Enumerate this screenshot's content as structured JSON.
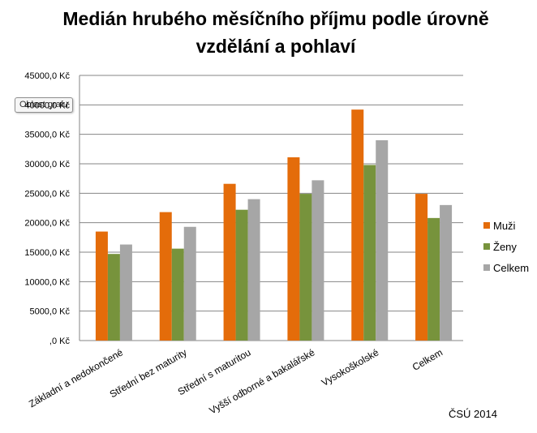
{
  "chart_data": {
    "type": "bar",
    "title": "Medián hrubého měsíčního příjmu podle úrovně vzdělání a pohlaví",
    "categories": [
      "Základní a nedokončené",
      "Střední bez maturity",
      "Střední s maturitou",
      "Vyšší odborné a bakalářské",
      "Vysokoškolské",
      "Celkem"
    ],
    "series": [
      {
        "name": "Muži",
        "color": "#e46c0a",
        "values": [
          18500,
          21800,
          26600,
          31100,
          39200,
          24900
        ]
      },
      {
        "name": "Ženy",
        "color": "#77933c",
        "values": [
          14700,
          15600,
          22200,
          24900,
          29800,
          20800
        ]
      },
      {
        "name": "Celkem",
        "color": "#a6a6a6",
        "values": [
          16300,
          19300,
          24000,
          27200,
          34000,
          23000
        ]
      }
    ],
    "yticks": [
      ",0 Kč",
      "5000,0 Kč",
      "10000,0 Kč",
      "15000,0 Kč",
      "20000,0 Kč",
      "25000,0 Kč",
      "30000,0 Kč",
      "35000,0 Kč",
      "40000,0 Kč",
      "45000,0 Kč"
    ],
    "ylim": [
      0,
      45000
    ],
    "legend_position": "right",
    "grid": true
  },
  "tooltip": "Oblast grafu",
  "source": "ČSÚ 2014"
}
